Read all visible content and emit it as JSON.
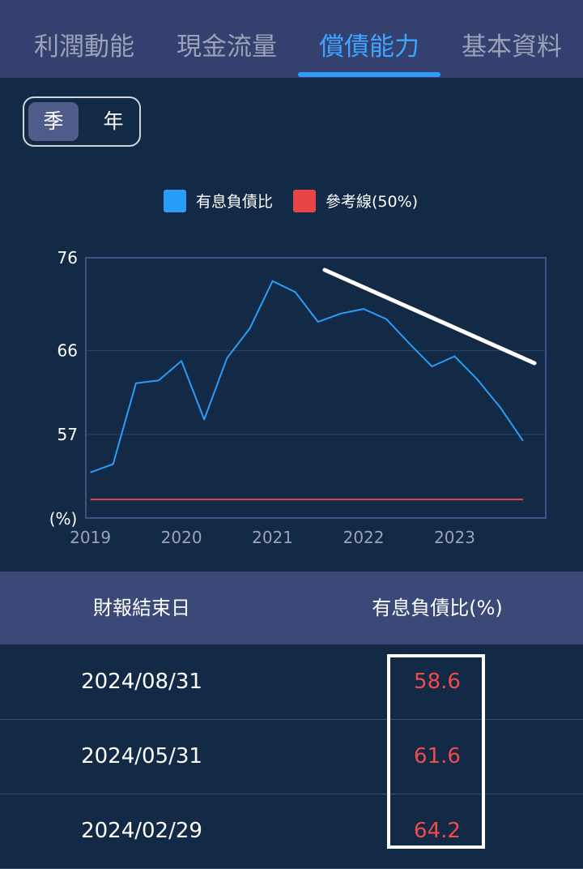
{
  "tabs": [
    {
      "label": "利潤動能",
      "active": false
    },
    {
      "label": "現金流量",
      "active": false
    },
    {
      "label": "償債能力",
      "active": true
    },
    {
      "label": "基本資料",
      "active": false
    }
  ],
  "period_toggle": {
    "options": [
      "季",
      "年"
    ],
    "selected": "季"
  },
  "colors": {
    "accent": "#2f9bff",
    "series": "#2b9cf7",
    "reference": "#e84646",
    "value_text": "#f04a4a",
    "background": "#132a47",
    "header": "#34406e"
  },
  "chart_data": {
    "type": "line",
    "legend": [
      {
        "name": "有息負債比",
        "color": "#2b9cf7"
      },
      {
        "name": "參考線(50%)",
        "color": "#e84646"
      }
    ],
    "ylabel": "(%)",
    "yticks": [
      57,
      66,
      76
    ],
    "ylim": [
      48,
      76
    ],
    "xticks": [
      "2019",
      "2020",
      "2021",
      "2022",
      "2023"
    ],
    "xlim": [
      2018.95,
      2024.0
    ],
    "grid": true,
    "series": [
      {
        "name": "有息負債比",
        "x": [
          2019.0,
          2019.25,
          2019.5,
          2019.75,
          2020.0,
          2020.25,
          2020.5,
          2020.75,
          2021.0,
          2021.25,
          2021.5,
          2021.75,
          2022.0,
          2022.25,
          2022.5,
          2022.75,
          2023.0,
          2023.25,
          2023.5,
          2023.75
        ],
        "values": [
          52.9,
          53.8,
          62.5,
          62.8,
          64.9,
          58.6,
          65.2,
          68.4,
          73.5,
          72.3,
          69.1,
          70.0,
          70.5,
          69.4,
          66.8,
          64.3,
          65.4,
          62.9,
          59.9,
          56.3
        ]
      },
      {
        "name": "參考線(50%)",
        "x": [
          2019.0,
          2023.75
        ],
        "values": [
          50,
          50
        ]
      }
    ]
  },
  "table": {
    "headers": [
      "財報結束日",
      "有息負債比(%)"
    ],
    "rows": [
      {
        "date": "2024/08/31",
        "value": "58.6"
      },
      {
        "date": "2024/05/31",
        "value": "61.6"
      },
      {
        "date": "2024/02/29",
        "value": "64.2"
      }
    ]
  }
}
